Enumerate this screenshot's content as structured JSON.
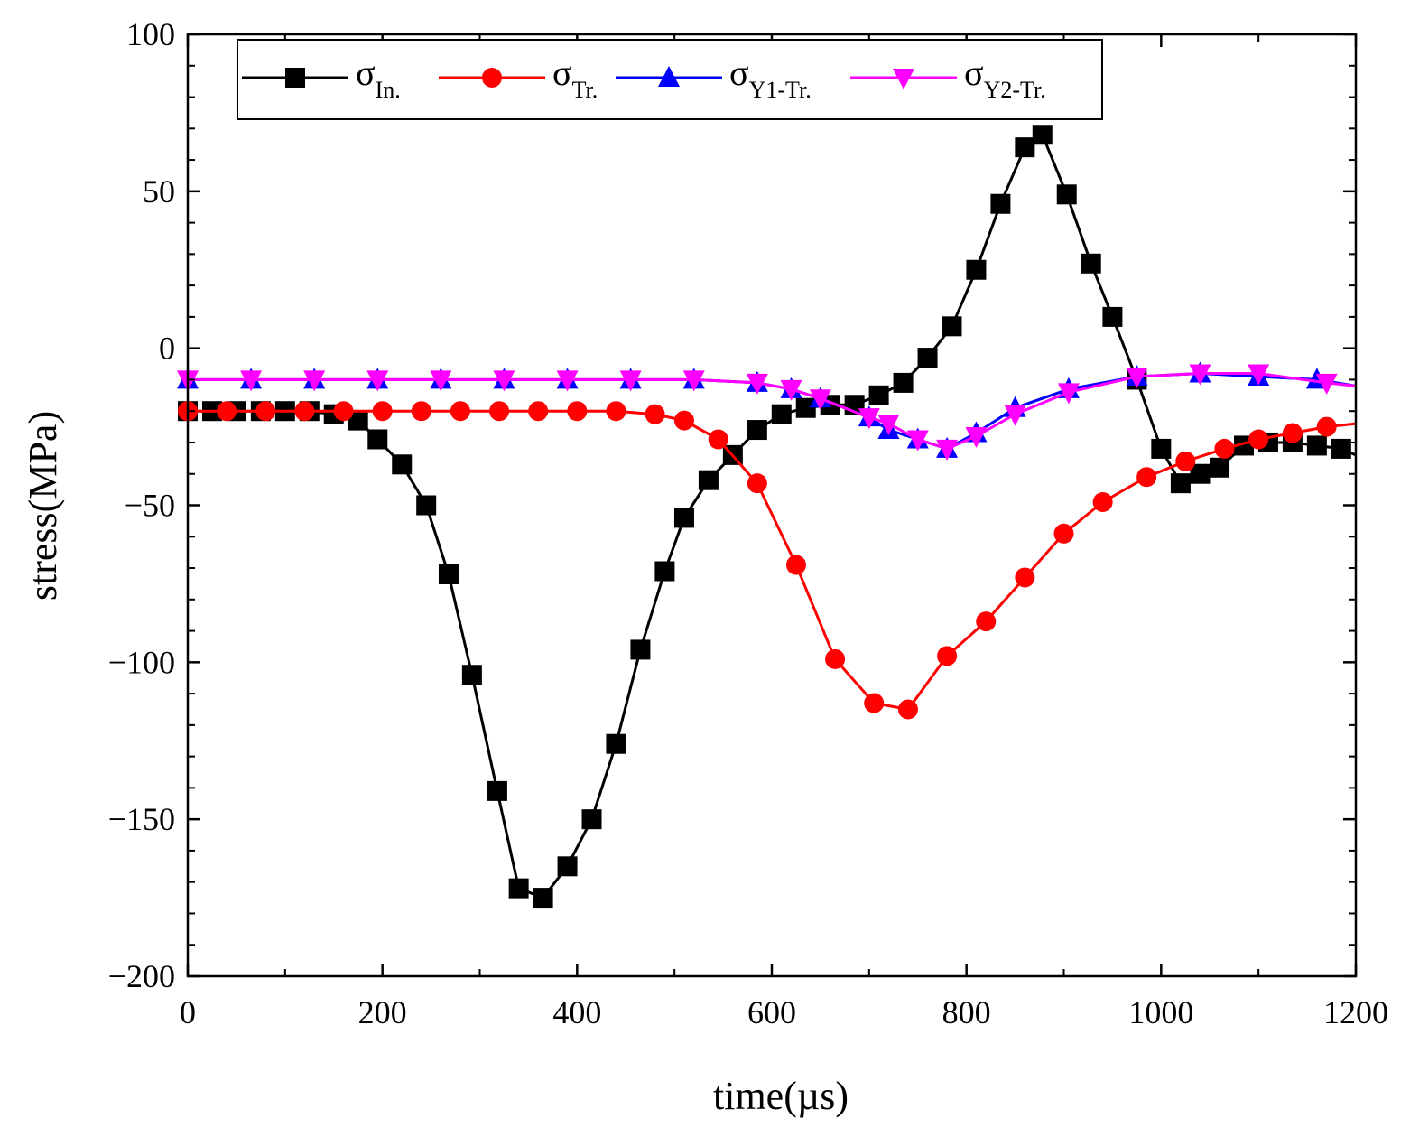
{
  "chart_data": {
    "type": "line",
    "title": "",
    "xlabel": "time(µs)",
    "ylabel": "stress(MPa)",
    "xlim": [
      0,
      1200
    ],
    "ylim": [
      -200,
      100
    ],
    "xticks": [
      "0",
      "200",
      "400",
      "600",
      "800",
      "1000",
      "1200"
    ],
    "yticks": [
      "100",
      "50",
      "0",
      "-50",
      "-100",
      "-150",
      "-200"
    ],
    "grid": false,
    "legend_position": "top-left",
    "series": [
      {
        "name": "σIn.",
        "symbol": "σ",
        "subscript": "In.",
        "color": "#000000",
        "marker": "square",
        "x": [
          0,
          25,
          50,
          75,
          100,
          125,
          150,
          175,
          195,
          220,
          245,
          268,
          292,
          318,
          340,
          365,
          390,
          415,
          440,
          465,
          490,
          510,
          535,
          560,
          585,
          610,
          635,
          660,
          685,
          710,
          735,
          760,
          785,
          810,
          835,
          860,
          878,
          903,
          928,
          950,
          975,
          1000,
          1020,
          1040,
          1060,
          1085,
          1110,
          1135,
          1160,
          1185,
          1200
        ],
        "y": [
          -20,
          -20,
          -20,
          -20,
          -20,
          -20,
          -21,
          -23,
          -29,
          -37,
          -50,
          -72,
          -104,
          -141,
          -172,
          -175,
          -165,
          -150,
          -126,
          -96,
          -71,
          -54,
          -42,
          -34,
          -26,
          -21,
          -19,
          -18,
          -18,
          -15,
          -11,
          -3,
          7,
          25,
          46,
          64,
          68,
          49,
          27,
          10,
          -10,
          -32,
          -43,
          -40,
          -38,
          -31,
          -30,
          -30,
          -31,
          -32,
          -34
        ]
      },
      {
        "name": "σTr.",
        "symbol": "σ",
        "subscript": "Tr.",
        "color": "#ff0000",
        "marker": "circle",
        "x": [
          0,
          40,
          80,
          120,
          160,
          200,
          240,
          280,
          320,
          360,
          400,
          440,
          480,
          510,
          545,
          585,
          625,
          665,
          705,
          740,
          780,
          820,
          860,
          900,
          940,
          985,
          1025,
          1065,
          1100,
          1135,
          1170,
          1200
        ],
        "y": [
          -20,
          -20,
          -20,
          -20,
          -20,
          -20,
          -20,
          -20,
          -20,
          -20,
          -20,
          -20,
          -21,
          -23,
          -29,
          -43,
          -69,
          -99,
          -113,
          -115,
          -98,
          -87,
          -73,
          -59,
          -49,
          -41,
          -36,
          -32,
          -29,
          -27,
          -25,
          -24
        ]
      },
      {
        "name": "σY1-Tr.",
        "symbol": "σ",
        "subscript": "Y1-Tr.",
        "color": "#0000ff",
        "marker": "triangle-up",
        "x": [
          0,
          65,
          130,
          195,
          260,
          325,
          390,
          455,
          520,
          585,
          620,
          650,
          700,
          720,
          750,
          780,
          810,
          850,
          905,
          975,
          1040,
          1100,
          1160,
          1200
        ],
        "y": [
          -10,
          -10,
          -10,
          -10,
          -10,
          -10,
          -10,
          -10,
          -10,
          -11,
          -13,
          -16,
          -22,
          -26,
          -29,
          -32,
          -27,
          -19,
          -13,
          -9,
          -8,
          -9,
          -10,
          -12
        ]
      },
      {
        "name": "σY2-Tr.",
        "symbol": "σ",
        "subscript": "Y2-Tr.",
        "color": "#ff00ff",
        "marker": "triangle-down",
        "x": [
          0,
          65,
          130,
          195,
          260,
          325,
          390,
          455,
          520,
          585,
          620,
          650,
          700,
          720,
          750,
          780,
          810,
          850,
          905,
          975,
          1040,
          1100,
          1170,
          1200
        ],
        "y": [
          -10,
          -10,
          -10,
          -10,
          -10,
          -10,
          -10,
          -10,
          -10,
          -11,
          -13,
          -16,
          -22,
          -24,
          -29,
          -32,
          -28,
          -21,
          -14,
          -9,
          -8,
          -8,
          -11,
          -12
        ]
      }
    ]
  }
}
